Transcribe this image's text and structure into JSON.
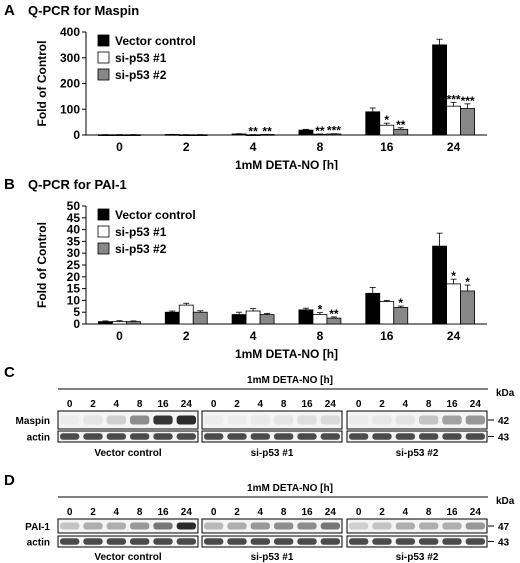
{
  "panels": {
    "A": {
      "label": "A",
      "title": "Q-PCR for Maspin"
    },
    "B": {
      "label": "B",
      "title": "Q-PCR for PAI-1"
    },
    "C": {
      "label": "C"
    },
    "D": {
      "label": "D"
    }
  },
  "chart_data": [
    {
      "type": "bar",
      "title": "Q-PCR for Maspin",
      "xlabel": "1mM DETA-NO [h]",
      "ylabel": "Fold of Control",
      "categories": [
        "0",
        "2",
        "4",
        "8",
        "16",
        "24"
      ],
      "ylim": [
        0,
        400
      ],
      "yticks": [
        "0",
        "100",
        "200",
        "300",
        "400"
      ],
      "legend_position": "top-left",
      "series": [
        {
          "name": "Vector control",
          "color": "#000000",
          "values": [
            1,
            2,
            4,
            19,
            90,
            350
          ],
          "errors": [
            0.5,
            0.5,
            1,
            3,
            15,
            22
          ]
        },
        {
          "name": "si-p53 #1",
          "color": "#ffffff",
          "values": [
            1,
            1,
            1,
            3,
            38,
            112
          ],
          "errors": [
            0.5,
            0.5,
            0.5,
            1,
            8,
            15
          ]
        },
        {
          "name": "si-p53 #2",
          "color": "#888888",
          "values": [
            1,
            1,
            2,
            4,
            22,
            103
          ],
          "errors": [
            0.5,
            0.5,
            0.5,
            1,
            6,
            18
          ]
        }
      ],
      "annotations": [
        {
          "category": "4",
          "series": 1,
          "text": "**"
        },
        {
          "category": "4",
          "series": 2,
          "text": "**"
        },
        {
          "category": "8",
          "series": 1,
          "text": "**"
        },
        {
          "category": "8",
          "series": 2,
          "text": "***"
        },
        {
          "category": "16",
          "series": 1,
          "text": "*"
        },
        {
          "category": "16",
          "series": 2,
          "text": "**"
        },
        {
          "category": "24",
          "series": 1,
          "text": "***"
        },
        {
          "category": "24",
          "series": 2,
          "text": "***"
        }
      ]
    },
    {
      "type": "bar",
      "title": "Q-PCR for PAI-1",
      "xlabel": "1mM DETA-NO [h]",
      "ylabel": "Fold of Control",
      "categories": [
        "0",
        "2",
        "4",
        "8",
        "16",
        "24"
      ],
      "ylim": [
        0,
        50
      ],
      "yticks": [
        "0",
        "5",
        "10",
        "15",
        "20",
        "25",
        "30",
        "35",
        "40",
        "45",
        "50"
      ],
      "legend_position": "top-left",
      "series": [
        {
          "name": "Vector control",
          "color": "#000000",
          "values": [
            1,
            5,
            4,
            6,
            13,
            33
          ],
          "errors": [
            0.3,
            0.5,
            1,
            0.7,
            2.5,
            5.5
          ]
        },
        {
          "name": "si-p53 #1",
          "color": "#ffffff",
          "values": [
            1,
            8,
            5.5,
            4,
            9.5,
            17
          ],
          "errors": [
            0.4,
            0.8,
            1,
            0.8,
            0.5,
            2
          ]
        },
        {
          "name": "si-p53 #2",
          "color": "#888888",
          "values": [
            1,
            5,
            4,
            2.5,
            7,
            14
          ],
          "errors": [
            0.3,
            0.6,
            0.5,
            0.5,
            0.6,
            2.5
          ]
        }
      ],
      "annotations": [
        {
          "category": "8",
          "series": 1,
          "text": "*"
        },
        {
          "category": "8",
          "series": 2,
          "text": "**"
        },
        {
          "category": "16",
          "series": 2,
          "text": "*"
        },
        {
          "category": "24",
          "series": 1,
          "text": "*"
        },
        {
          "category": "24",
          "series": 2,
          "text": "*"
        }
      ]
    }
  ],
  "blots": {
    "C": {
      "treatment_label": "1mM DETA-NO [h]",
      "timepoints": [
        "0",
        "2",
        "4",
        "8",
        "16",
        "24"
      ],
      "kda_label": "kDa",
      "rows": [
        {
          "name": "Maspin",
          "kda": "42",
          "intensities": [
            [
              0.02,
              0.05,
              0.15,
              0.45,
              0.85,
              0.9
            ],
            [
              0.02,
              0.02,
              0.03,
              0.05,
              0.08,
              0.1
            ],
            [
              0.02,
              0.04,
              0.06,
              0.2,
              0.35,
              0.4
            ]
          ]
        },
        {
          "name": "actin",
          "kda": "43",
          "intensities": [
            [
              0.75,
              0.75,
              0.75,
              0.75,
              0.75,
              0.75
            ],
            [
              0.75,
              0.75,
              0.75,
              0.75,
              0.75,
              0.75
            ],
            [
              0.75,
              0.75,
              0.75,
              0.75,
              0.75,
              0.75
            ]
          ]
        }
      ],
      "groups": [
        "Vector control",
        "si-p53 #1",
        "si-p53 #2"
      ]
    },
    "D": {
      "treatment_label": "1mM DETA-NO [h]",
      "timepoints": [
        "0",
        "2",
        "4",
        "8",
        "16",
        "24"
      ],
      "kda_label": "kDa",
      "rows": [
        {
          "name": "PAI-1",
          "kda": "47",
          "intensities": [
            [
              0.2,
              0.3,
              0.3,
              0.4,
              0.55,
              0.9
            ],
            [
              0.25,
              0.3,
              0.4,
              0.45,
              0.45,
              0.55
            ],
            [
              0.15,
              0.2,
              0.3,
              0.3,
              0.3,
              0.4
            ]
          ]
        },
        {
          "name": "actin",
          "kda": "43",
          "intensities": [
            [
              0.75,
              0.75,
              0.75,
              0.75,
              0.75,
              0.75
            ],
            [
              0.75,
              0.75,
              0.75,
              0.75,
              0.75,
              0.75
            ],
            [
              0.75,
              0.75,
              0.75,
              0.75,
              0.75,
              0.75
            ]
          ]
        }
      ],
      "groups": [
        "Vector control",
        "si-p53 #1",
        "si-p53 #2"
      ]
    }
  }
}
